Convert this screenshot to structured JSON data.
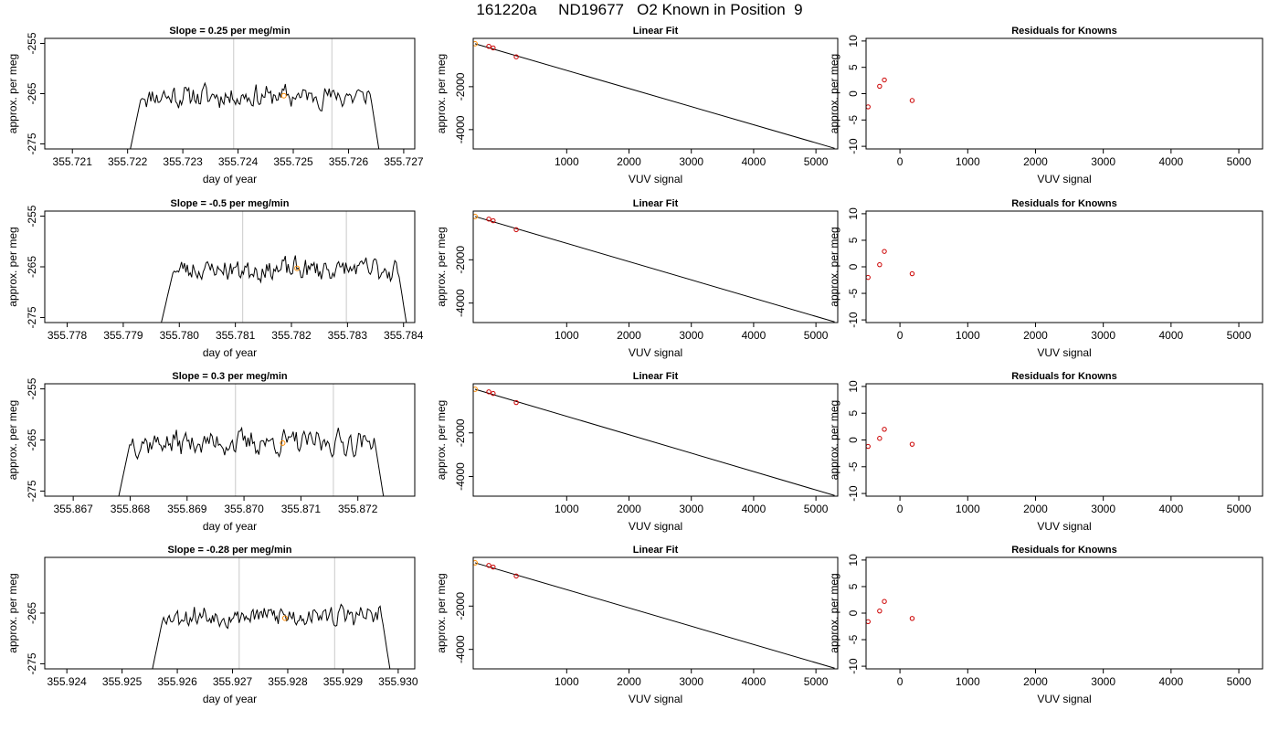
{
  "figure": {
    "title": "161220a     ND19677   O2 Known in Position  9"
  },
  "colors": {
    "line": "#000000",
    "grid": "#d3d3d3",
    "known": "#ff8c00",
    "point": "#cc0000"
  },
  "chart_data": [
    {
      "panel": "row1-timeseries",
      "type": "line",
      "title": "Slope =  0.25  per meg/min",
      "xlabel": "day of year",
      "ylabel": "approx. per meg",
      "xlim": [
        355.7205,
        355.7272
      ],
      "ylim": [
        -276,
        -254
      ],
      "xticks": [
        "355.721",
        "355.722",
        "355.723",
        "355.724",
        "355.725",
        "355.726",
        "355.727"
      ],
      "yticks": [
        "-255",
        "-265",
        "-275"
      ],
      "signal": {
        "start": 355.72205,
        "end": 355.72655,
        "start_value": -276,
        "end_value": -276,
        "plateau_start": 355.72225,
        "plateau_end": 355.7264,
        "mean": -265.5,
        "amplitude": 2.8,
        "seed": 11
      },
      "vlines": [
        355.72392,
        355.7257
      ],
      "known_point": {
        "x": 355.72483,
        "y": -265.4
      }
    },
    {
      "panel": "row1-linear-fit",
      "type": "scatter",
      "title": "Linear Fit",
      "xlabel": "VUV signal",
      "ylabel": "approx. per meg",
      "xlim": [
        -500,
        5350
      ],
      "ylim": [
        -4900,
        250
      ],
      "xticks": [
        "1000",
        "2000",
        "3000",
        "4000",
        "5000"
      ],
      "yticks": [
        "-2000",
        "-4000"
      ],
      "points": [
        [
          -250,
          -120
        ],
        [
          -180,
          -195
        ],
        [
          190,
          -610
        ]
      ],
      "known_point": [
        -470,
        0
      ],
      "fit_line": [
        [
          -470,
          0
        ],
        [
          5300,
          -4870
        ]
      ]
    },
    {
      "panel": "row1-residuals",
      "type": "scatter",
      "title": "Residuals for Knowns",
      "xlabel": "VUV signal",
      "ylabel": "approx. per meg",
      "xlim": [
        -500,
        5350
      ],
      "ylim": [
        -10.5,
        10.5
      ],
      "xticks": [
        "0",
        "1000",
        "2000",
        "3000",
        "4000",
        "5000"
      ],
      "yticks": [
        "10",
        "5",
        "0",
        "-5",
        "-10"
      ],
      "points": [
        [
          -470,
          -2.5
        ],
        [
          -300,
          1.4
        ],
        [
          -230,
          2.6
        ],
        [
          180,
          -1.3
        ]
      ]
    },
    {
      "panel": "row2-timeseries",
      "type": "line",
      "title": "Slope =  -0.5  per meg/min",
      "xlabel": "day of year",
      "ylabel": "approx. per meg",
      "xlim": [
        355.7776,
        355.7842
      ],
      "ylim": [
        -276,
        -254
      ],
      "xticks": [
        "355.778",
        "355.779",
        "355.780",
        "355.781",
        "355.782",
        "355.783",
        "355.784"
      ],
      "yticks": [
        "-255",
        "-265",
        "-275"
      ],
      "signal": {
        "start": 355.77968,
        "end": 355.78405,
        "start_value": -276,
        "end_value": -276,
        "plateau_start": 355.7799,
        "plateau_end": 355.7839,
        "mean": -265.5,
        "amplitude": 2.8,
        "seed": 23
      },
      "vlines": [
        355.78113,
        355.78298
      ],
      "known_point": {
        "x": 355.7821,
        "y": -265.3
      }
    },
    {
      "panel": "row2-linear-fit",
      "type": "scatter",
      "title": "Linear Fit",
      "xlabel": "VUV signal",
      "ylabel": "approx. per meg",
      "xlim": [
        -500,
        5350
      ],
      "ylim": [
        -4900,
        250
      ],
      "xticks": [
        "1000",
        "2000",
        "3000",
        "4000",
        "5000"
      ],
      "yticks": [
        "-2000",
        "-4000"
      ],
      "points": [
        [
          -250,
          -120
        ],
        [
          -180,
          -195
        ],
        [
          190,
          -610
        ]
      ],
      "known_point": [
        -470,
        0
      ],
      "fit_line": [
        [
          -470,
          0
        ],
        [
          5300,
          -4870
        ]
      ]
    },
    {
      "panel": "row2-residuals",
      "type": "scatter",
      "title": "Residuals for Knowns",
      "xlabel": "VUV signal",
      "ylabel": "approx. per meg",
      "xlim": [
        -500,
        5350
      ],
      "ylim": [
        -10.5,
        10.5
      ],
      "xticks": [
        "0",
        "1000",
        "2000",
        "3000",
        "4000",
        "5000"
      ],
      "yticks": [
        "10",
        "5",
        "0",
        "-5",
        "-10"
      ],
      "points": [
        [
          -470,
          -2.0
        ],
        [
          -300,
          0.4
        ],
        [
          -230,
          2.9
        ],
        [
          180,
          -1.3
        ]
      ]
    },
    {
      "panel": "row3-timeseries",
      "type": "line",
      "title": "Slope =  0.3  per meg/min",
      "xlabel": "day of year",
      "ylabel": "approx. per meg",
      "xlim": [
        355.8665,
        355.873
      ],
      "ylim": [
        -276,
        -254
      ],
      "xticks": [
        "355.867",
        "355.868",
        "355.869",
        "355.870",
        "355.871",
        "355.872"
      ],
      "yticks": [
        "-255",
        "-265",
        "-275"
      ],
      "signal": {
        "start": 355.8678,
        "end": 355.87245,
        "start_value": -276,
        "end_value": -276,
        "plateau_start": 355.868,
        "plateau_end": 355.8723,
        "mean": -265.5,
        "amplitude": 3.0,
        "seed": 37
      },
      "vlines": [
        355.86985,
        355.87157
      ],
      "known_point": {
        "x": 355.87068,
        "y": -265.6
      }
    },
    {
      "panel": "row3-linear-fit",
      "type": "scatter",
      "title": "Linear Fit",
      "xlabel": "VUV signal",
      "ylabel": "approx. per meg",
      "xlim": [
        -500,
        5350
      ],
      "ylim": [
        -4900,
        250
      ],
      "xticks": [
        "1000",
        "2000",
        "3000",
        "4000",
        "5000"
      ],
      "yticks": [
        "-2000",
        "-4000"
      ],
      "points": [
        [
          -250,
          -120
        ],
        [
          -180,
          -195
        ],
        [
          190,
          -610
        ]
      ],
      "known_point": [
        -470,
        0
      ],
      "fit_line": [
        [
          -470,
          0
        ],
        [
          5300,
          -4870
        ]
      ]
    },
    {
      "panel": "row3-residuals",
      "type": "scatter",
      "title": "Residuals for Knowns",
      "xlabel": "VUV signal",
      "ylabel": "approx. per meg",
      "xlim": [
        -500,
        5350
      ],
      "ylim": [
        -10.5,
        10.5
      ],
      "xticks": [
        "0",
        "1000",
        "2000",
        "3000",
        "4000",
        "5000"
      ],
      "yticks": [
        "10",
        "5",
        "0",
        "-5",
        "-10"
      ],
      "points": [
        [
          -470,
          -1.2
        ],
        [
          -300,
          0.3
        ],
        [
          -230,
          2.0
        ],
        [
          180,
          -0.8
        ]
      ]
    },
    {
      "panel": "row4-timeseries",
      "type": "line",
      "title": "Slope =  -0.28  per meg/min",
      "xlabel": "day of year",
      "ylabel": "approx. per meg",
      "xlim": [
        355.9236,
        355.9303
      ],
      "ylim": [
        -276,
        -254
      ],
      "xticks": [
        "355.924",
        "355.925",
        "355.926",
        "355.927",
        "355.928",
        "355.929",
        "355.930"
      ],
      "yticks": [
        "-265",
        "-275"
      ],
      "signal": {
        "start": 355.92555,
        "end": 355.92985,
        "start_value": -276,
        "end_value": -276,
        "plateau_start": 355.92575,
        "plateau_end": 355.9297,
        "mean": -265.5,
        "amplitude": 2.6,
        "seed": 53
      },
      "vlines": [
        355.92712,
        355.92885
      ],
      "known_point": {
        "x": 355.92795,
        "y": -266.0
      }
    },
    {
      "panel": "row4-linear-fit",
      "type": "scatter",
      "title": "Linear Fit",
      "xlabel": "VUV signal",
      "ylabel": "approx. per meg",
      "xlim": [
        -500,
        5350
      ],
      "ylim": [
        -4900,
        250
      ],
      "xticks": [
        "1000",
        "2000",
        "3000",
        "4000",
        "5000"
      ],
      "yticks": [
        "-2000",
        "-4000"
      ],
      "points": [
        [
          -250,
          -120
        ],
        [
          -180,
          -195
        ],
        [
          190,
          -610
        ]
      ],
      "known_point": [
        -470,
        0
      ],
      "fit_line": [
        [
          -470,
          0
        ],
        [
          5300,
          -4870
        ]
      ]
    },
    {
      "panel": "row4-residuals",
      "type": "scatter",
      "title": "Residuals for Knowns",
      "xlabel": "VUV signal",
      "ylabel": "approx. per meg",
      "xlim": [
        -500,
        5350
      ],
      "ylim": [
        -10.5,
        10.5
      ],
      "xticks": [
        "0",
        "1000",
        "2000",
        "3000",
        "4000",
        "5000"
      ],
      "yticks": [
        "10",
        "5",
        "0",
        "-5",
        "-10"
      ],
      "points": [
        [
          -470,
          -1.6
        ],
        [
          -300,
          0.4
        ],
        [
          -230,
          2.2
        ],
        [
          180,
          -1.0
        ]
      ]
    }
  ]
}
